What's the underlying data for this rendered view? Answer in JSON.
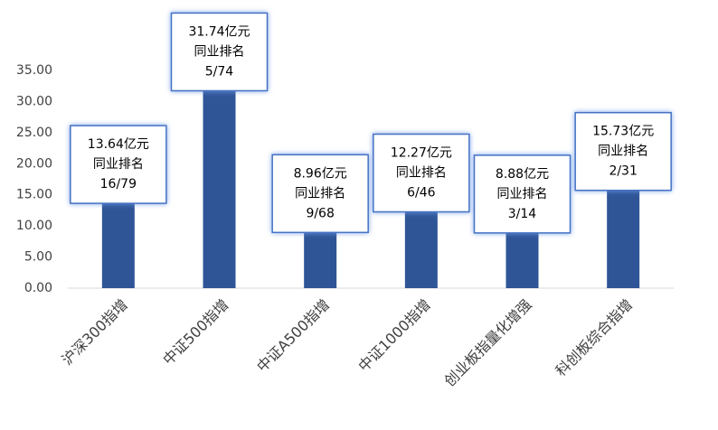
{
  "chart_data": {
    "type": "bar",
    "categories": [
      "沪深300指增",
      "中证500指增",
      "中证A500指增",
      "中证1000指增",
      "创业板指量化增强",
      "科创板综合指增"
    ],
    "values": [
      13.64,
      31.74,
      8.96,
      12.27,
      8.88,
      15.73
    ],
    "value_labels": [
      "13.64亿元",
      "31.74亿元",
      "8.96亿元",
      "12.27亿元",
      "8.88亿元",
      "15.73亿元"
    ],
    "rank_title": "同业排名",
    "ranks": [
      "16/79",
      "5/74",
      "9/68",
      "6/46",
      "3/14",
      "2/31"
    ],
    "color": "#2f5597",
    "ylim": [
      0,
      35
    ],
    "yticks": [
      {
        "value": 0,
        "label": "0.00"
      },
      {
        "value": 5,
        "label": "5.00"
      },
      {
        "value": 10,
        "label": "10.00"
      },
      {
        "value": 15,
        "label": "15.00"
      },
      {
        "value": 20,
        "label": "20.00"
      },
      {
        "value": 25,
        "label": "25.00"
      },
      {
        "value": 30,
        "label": "30.00"
      },
      {
        "value": 35,
        "label": "35.00"
      }
    ],
    "grid": false
  }
}
